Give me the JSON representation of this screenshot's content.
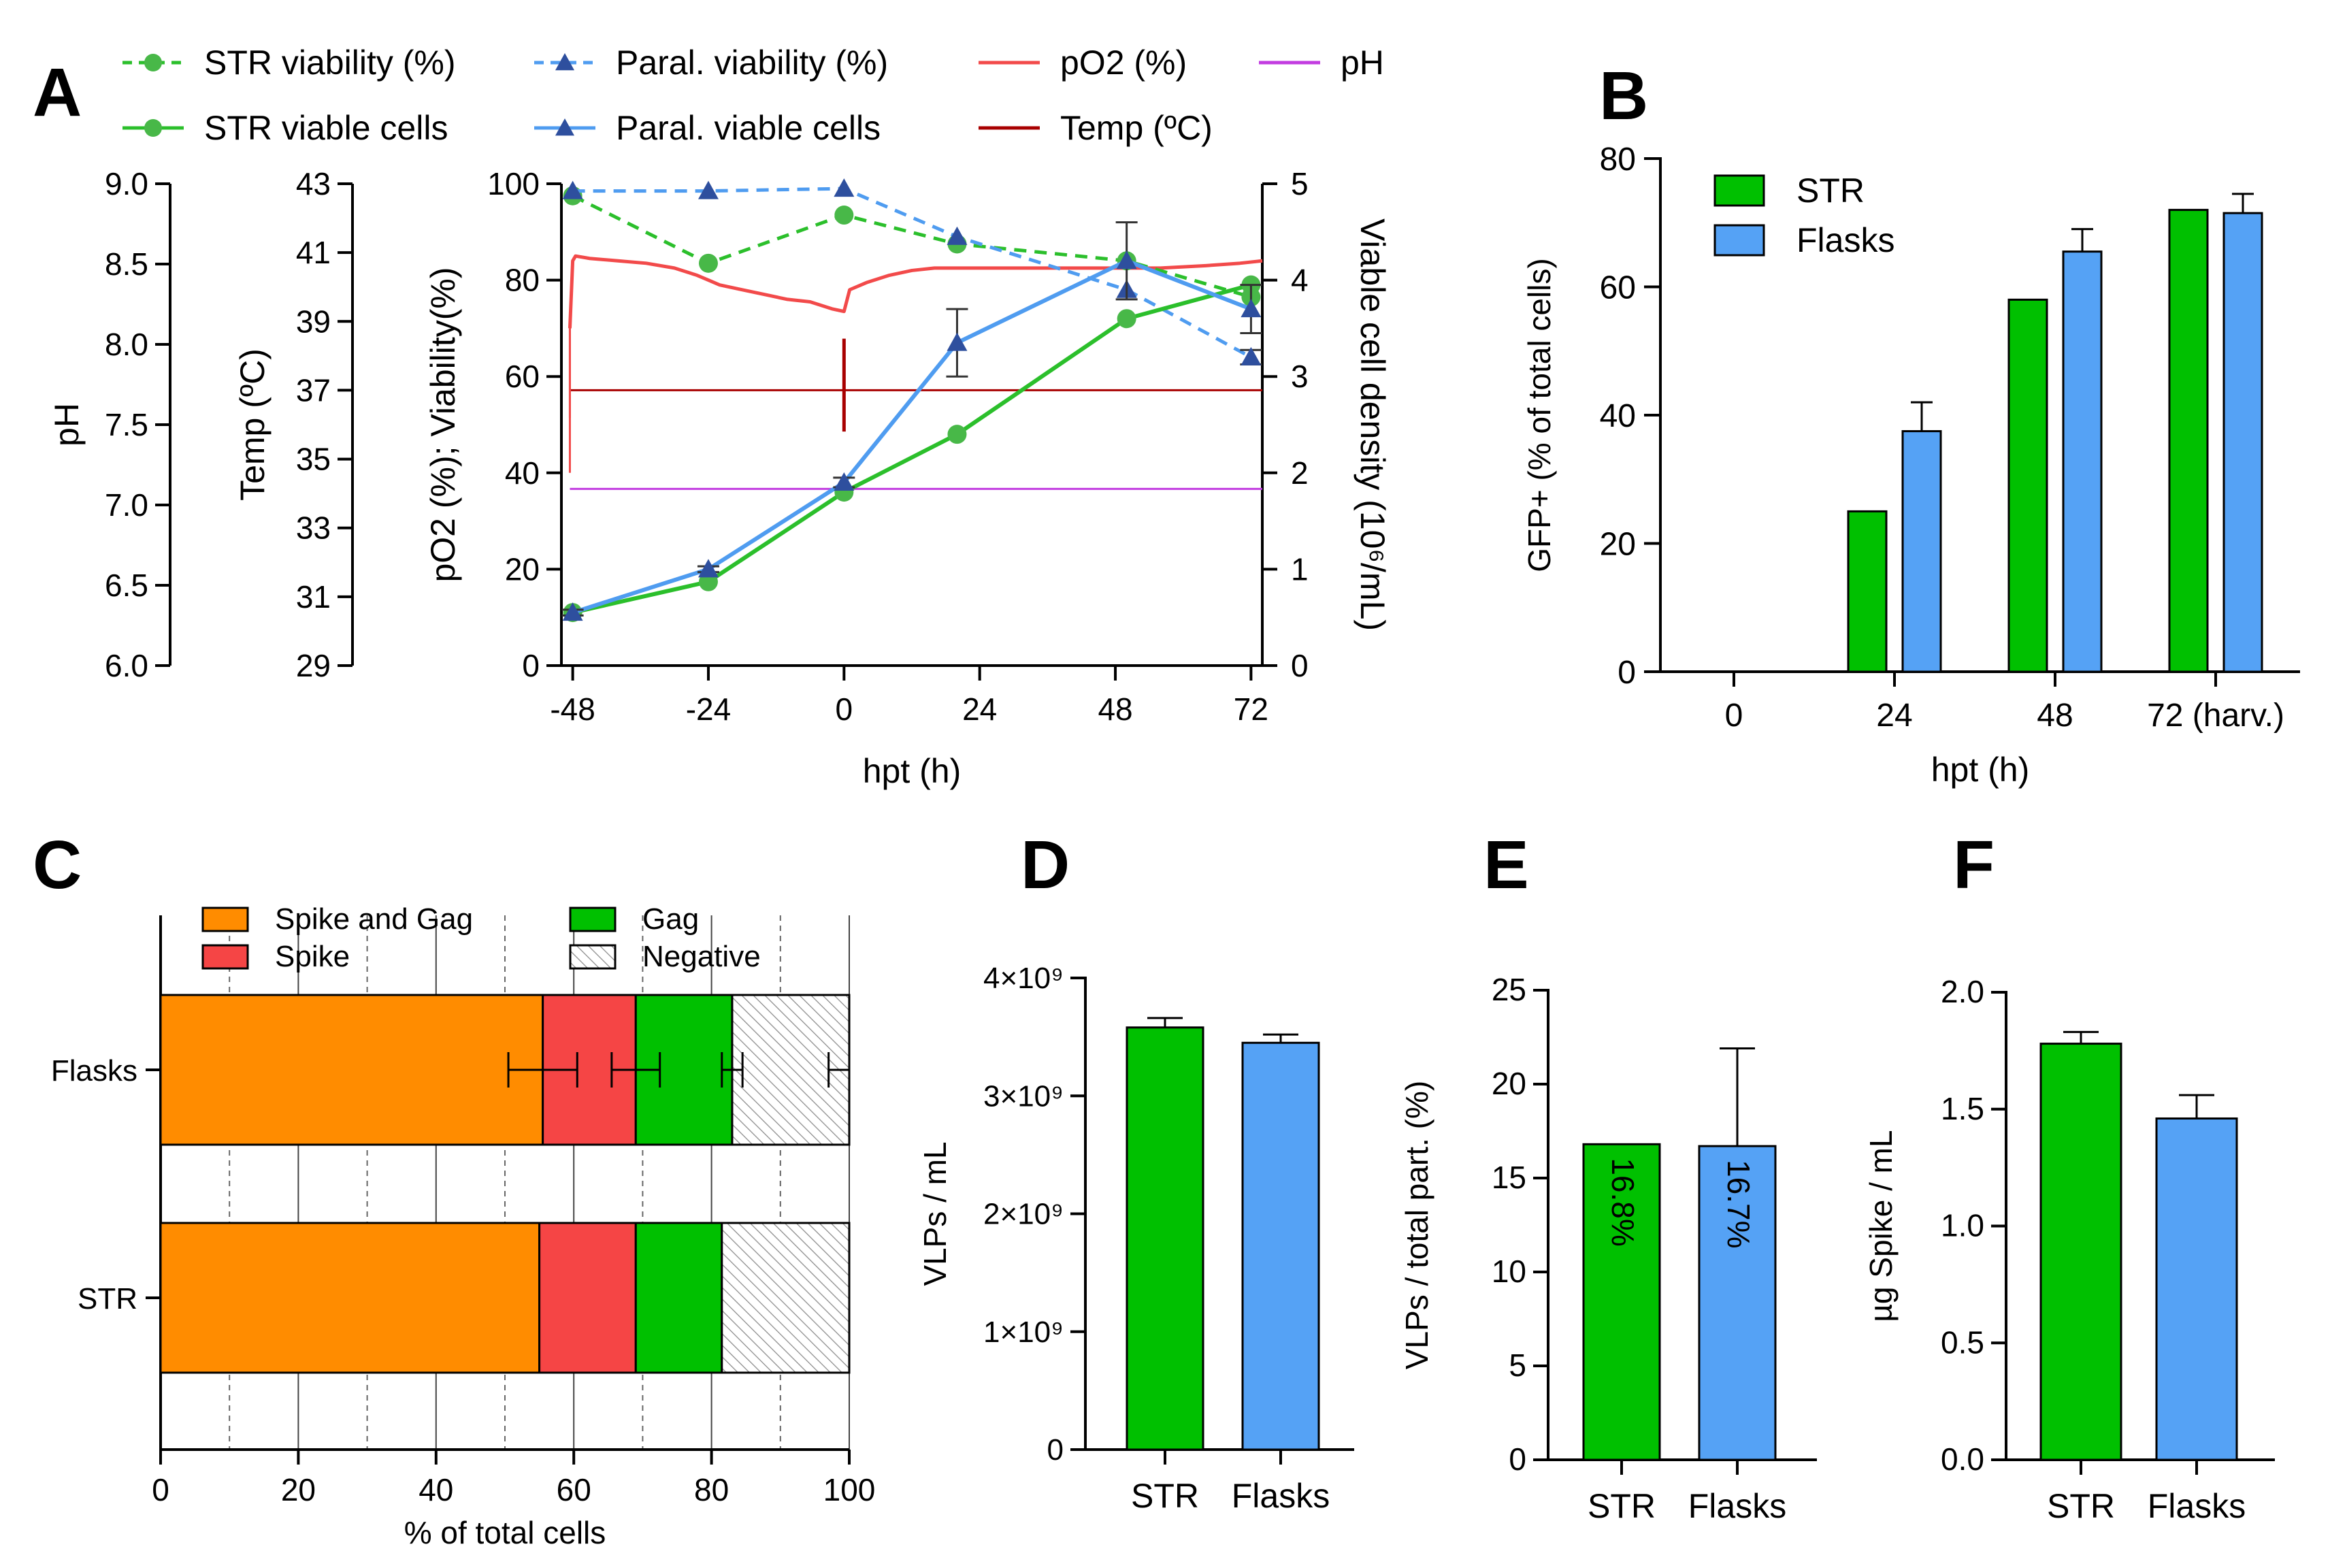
{
  "panels": {
    "A": "A",
    "B": "B",
    "C": "C",
    "D": "D",
    "E": "E",
    "F": "F"
  },
  "colors": {
    "str_green": "#00c000",
    "str_line": "#2bbf2b",
    "str_marker": "#48b848",
    "paral_blue": "#4f9cf0",
    "paral_marker": "#2e4f9e",
    "po2_red": "#f24a4a",
    "temp_darkred": "#a80000",
    "ph_purple": "#c23ce0",
    "spike_gag_orange": "#ff8c00",
    "spike_red": "#f54545",
    "gag_green": "#00c000",
    "negative_gray": "#9a9a9a",
    "flasks_blue": "#55a2f5"
  },
  "chart_data": [
    {
      "id": "A",
      "type": "line",
      "xlabel": "hpt (h)",
      "x_ticks": [
        -48,
        -24,
        0,
        24,
        48,
        72
      ],
      "xlim": [
        -50,
        74
      ],
      "legend": [
        {
          "key": "str_viab",
          "label": "STR viability (%)"
        },
        {
          "key": "paral_viab",
          "label": "Paral. viability (%)"
        },
        {
          "key": "po2",
          "label": "pO2 (%)"
        },
        {
          "key": "ph",
          "label": "pH"
        },
        {
          "key": "str_cells",
          "label": "STR viable cells"
        },
        {
          "key": "paral_cells",
          "label": "Paral. viable cells"
        },
        {
          "key": "temp",
          "label": "Temp (ºC)"
        }
      ],
      "axes": {
        "ph": {
          "label": "pH",
          "ticks": [
            "6.0",
            "6.5",
            "7.0",
            "7.5",
            "8.0",
            "8.5",
            "9.0"
          ],
          "range": [
            6.0,
            9.0
          ]
        },
        "temp": {
          "label": "Temp (ºC)",
          "ticks": [
            "29",
            "31",
            "33",
            "35",
            "37",
            "39",
            "41",
            "43"
          ],
          "range": [
            29,
            43
          ]
        },
        "left": {
          "label": "pO2 (%); Viability(%)",
          "ticks": [
            "0",
            "20",
            "40",
            "60",
            "80",
            "100"
          ],
          "range": [
            0,
            100
          ]
        },
        "right": {
          "label": "Viable cell density (10⁶/mL)",
          "ticks": [
            "0",
            "1",
            "2",
            "3",
            "4",
            "5"
          ],
          "range": [
            0,
            5
          ]
        }
      },
      "series": [
        {
          "name": "STR viability (%)",
          "axis": "left",
          "x": [
            -48,
            -24,
            0,
            20,
            50,
            72
          ],
          "y": [
            97.5,
            83.5,
            93.5,
            87.5,
            84,
            76.5
          ],
          "style": "dashed",
          "marker": "circle"
        },
        {
          "name": "Paral. viability (%)",
          "axis": "left",
          "x": [
            -48,
            -24,
            0,
            20,
            50,
            72
          ],
          "y": [
            98.5,
            98.5,
            99,
            89,
            78,
            64
          ],
          "yerr": [
            0,
            0,
            0,
            0,
            0,
            1.5
          ],
          "style": "dashed",
          "marker": "triangle"
        },
        {
          "name": "STR viable cells",
          "axis": "right",
          "x": [
            -48,
            -24,
            0,
            20,
            50,
            72
          ],
          "y": [
            0.55,
            0.87,
            1.8,
            2.4,
            3.6,
            3.95
          ],
          "style": "solid",
          "marker": "circle"
        },
        {
          "name": "Paral. viable cells",
          "axis": "right",
          "x": [
            -48,
            -24,
            0,
            20,
            50,
            72
          ],
          "y": [
            0.55,
            1.0,
            1.9,
            3.35,
            4.2,
            3.7
          ],
          "yerr": [
            0.03,
            0.03,
            0.05,
            0.35,
            0.4,
            0.25
          ],
          "style": "solid",
          "marker": "triangle"
        },
        {
          "name": "pO2 (%)",
          "axis": "left",
          "style": "trace",
          "x": [
            -48.5,
            -48,
            -47.5,
            -45,
            -40,
            -35,
            -30,
            -26,
            -24,
            -22,
            -18,
            -14,
            -10,
            -6,
            -2,
            0,
            1,
            4,
            8,
            12,
            16,
            20,
            26,
            32,
            40,
            48,
            56,
            64,
            70,
            74
          ],
          "y": [
            70,
            84,
            85,
            84.5,
            84,
            83.5,
            82.5,
            81,
            80,
            79,
            78,
            77,
            76,
            75.5,
            74,
            73.5,
            78,
            79.5,
            81,
            82,
            82.5,
            82.5,
            82.5,
            82.5,
            82.5,
            82.5,
            82.5,
            83,
            83.5,
            84
          ]
        },
        {
          "name": "Temp (ºC)",
          "axis": "temp",
          "style": "trace",
          "x": [
            -48.5,
            74
          ],
          "y": [
            37,
            37
          ]
        },
        {
          "name": "pH",
          "axis": "ph",
          "style": "trace",
          "x": [
            -48.5,
            74
          ],
          "y": [
            7.1,
            7.1
          ]
        }
      ]
    },
    {
      "id": "B",
      "type": "bar",
      "ylabel": "GFP+ (% of total cells)",
      "xlabel": "hpt (h)",
      "ylim": [
        0,
        80
      ],
      "y_ticks": [
        "0",
        "20",
        "40",
        "60",
        "80"
      ],
      "categories": [
        "0",
        "24",
        "48",
        "72 (harv.)"
      ],
      "series": [
        {
          "name": "STR",
          "values": [
            0,
            25,
            58,
            72
          ],
          "err": [
            0,
            0,
            0,
            0
          ]
        },
        {
          "name": "Flasks",
          "values": [
            0,
            37.5,
            65.5,
            71.5
          ],
          "err": [
            0,
            4.5,
            3.5,
            3
          ]
        }
      ]
    },
    {
      "id": "C",
      "type": "bar",
      "orientation": "horizontal",
      "stacked": true,
      "xlabel": "% of total cells",
      "xlim": [
        0,
        100
      ],
      "x_ticks": [
        "0",
        "20",
        "40",
        "60",
        "80",
        "100"
      ],
      "categories": [
        "Flasks",
        "STR"
      ],
      "series": [
        {
          "name": "Spike and Gag",
          "values": [
            55.5,
            55
          ],
          "err": [
            5,
            0
          ]
        },
        {
          "name": "Spike",
          "values": [
            13.5,
            14
          ],
          "err": [
            3.5,
            0
          ]
        },
        {
          "name": "Gag",
          "values": [
            14,
            12.5
          ],
          "err": [
            1.5,
            0
          ]
        },
        {
          "name": "Negative",
          "values": [
            17,
            18.5
          ],
          "err": [
            3,
            0
          ]
        }
      ]
    },
    {
      "id": "D",
      "type": "bar",
      "ylabel": "VLPs / mL",
      "ylim": [
        0,
        4000000000.0
      ],
      "y_ticks": [
        "0",
        "1×10⁹",
        "2×10⁹",
        "3×10⁹",
        "4×10⁹"
      ],
      "categories": [
        "STR",
        "Flasks"
      ],
      "values": [
        3580000000.0,
        3450000000.0
      ],
      "err": [
        80000000.0,
        70000000.0
      ]
    },
    {
      "id": "E",
      "type": "bar",
      "ylabel": "VLPs / total part. (%)",
      "ylim": [
        0,
        25
      ],
      "y_ticks": [
        "0",
        "5",
        "10",
        "15",
        "20",
        "25"
      ],
      "categories": [
        "STR",
        "Flasks"
      ],
      "values": [
        16.8,
        16.7
      ],
      "err": [
        0,
        5.2
      ],
      "data_labels": [
        "16.8%",
        "16.7%"
      ]
    },
    {
      "id": "F",
      "type": "bar",
      "ylabel": "µg Spike / mL",
      "ylim": [
        0,
        2.0
      ],
      "y_ticks": [
        "0.0",
        "0.5",
        "1.0",
        "1.5",
        "2.0"
      ],
      "categories": [
        "STR",
        "Flasks"
      ],
      "values": [
        1.78,
        1.46
      ],
      "err": [
        0.05,
        0.1
      ]
    }
  ]
}
